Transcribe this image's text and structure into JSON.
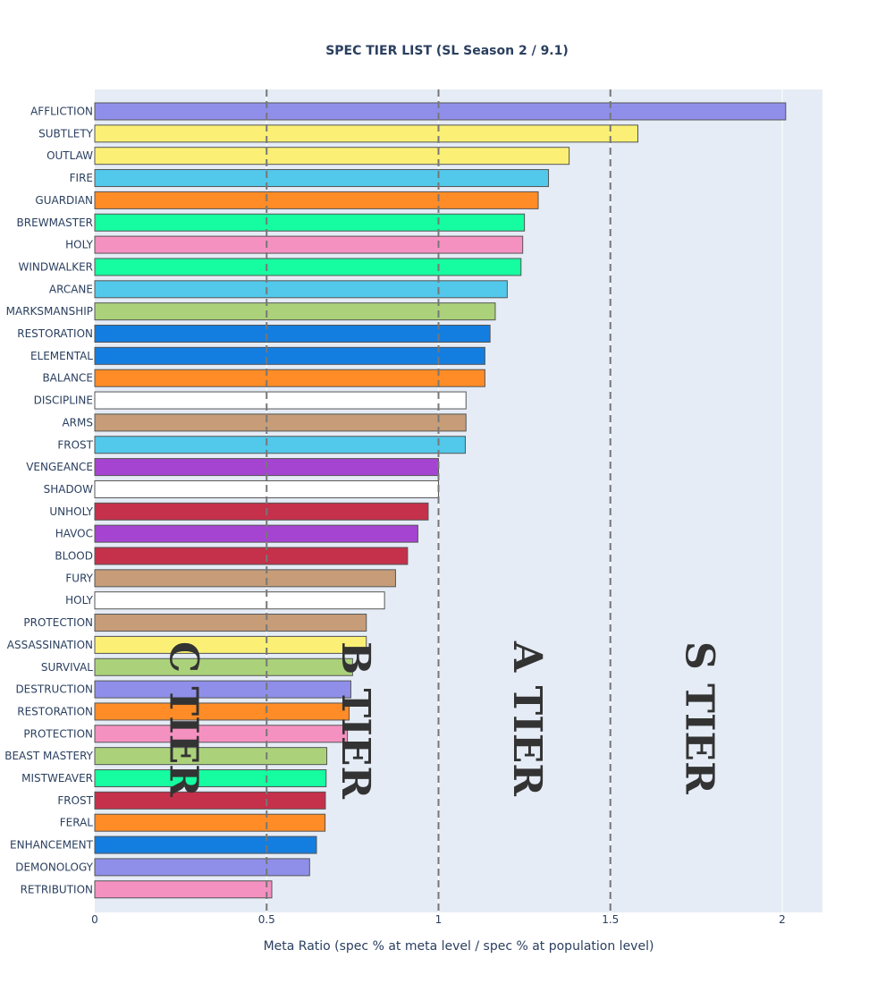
{
  "chart_data": {
    "type": "bar",
    "orientation": "horizontal",
    "title": "SPEC TIER LIST (SL Season 2 / 9.1)",
    "xlabel": "Meta Ratio (spec % at meta level / spec % at population level)",
    "ylabel": "",
    "xlim": [
      0,
      2.12
    ],
    "xticks": [
      {
        "value": 0,
        "label": "0"
      },
      {
        "value": 0.5,
        "label": "0.5"
      },
      {
        "value": 1,
        "label": "1"
      },
      {
        "value": 1.5,
        "label": "1.5"
      },
      {
        "value": 2,
        "label": "2"
      }
    ],
    "grid": true,
    "plot_background": "#e5ecf6",
    "bar_outline": "#555555",
    "reference_lines": [
      0.5,
      1.0,
      1.5
    ],
    "tier_labels": [
      {
        "text": "C TIER",
        "x": 0.22
      },
      {
        "text": "B TIER",
        "x": 0.72
      },
      {
        "text": "A TIER",
        "x": 1.22
      },
      {
        "text": "S TIER",
        "x": 1.72
      }
    ],
    "bars": [
      {
        "label": "AFFLICTION",
        "value": 2.01,
        "color": "#8f8fea"
      },
      {
        "label": "SUBTLETY",
        "value": 1.58,
        "color": "#fbf075"
      },
      {
        "label": "OUTLAW",
        "value": 1.38,
        "color": "#fbf075"
      },
      {
        "label": "FIRE",
        "value": 1.32,
        "color": "#52c8ea"
      },
      {
        "label": "GUARDIAN",
        "value": 1.29,
        "color": "#ff8c26"
      },
      {
        "label": "BREWMASTER",
        "value": 1.25,
        "color": "#16fca0"
      },
      {
        "label": "HOLY",
        "value": 1.245,
        "color": "#f591c1"
      },
      {
        "label": "WINDWALKER",
        "value": 1.24,
        "color": "#16fca0"
      },
      {
        "label": "ARCANE",
        "value": 1.2,
        "color": "#52c8ea"
      },
      {
        "label": "MARKSMANSHIP",
        "value": 1.165,
        "color": "#abd27a"
      },
      {
        "label": "RESTORATION",
        "value": 1.15,
        "color": "#147ee0"
      },
      {
        "label": "ELEMENTAL",
        "value": 1.135,
        "color": "#147ee0"
      },
      {
        "label": "BALANCE",
        "value": 1.135,
        "color": "#ff8c26"
      },
      {
        "label": "DISCIPLINE",
        "value": 1.08,
        "color": "#ffffff"
      },
      {
        "label": "ARMS",
        "value": 1.08,
        "color": "#c69d78"
      },
      {
        "label": "FROST",
        "value": 1.078,
        "color": "#52c8ea"
      },
      {
        "label": "VENGEANCE",
        "value": 1.0,
        "color": "#a644d2"
      },
      {
        "label": "SHADOW",
        "value": 1.0,
        "color": "#ffffff"
      },
      {
        "label": "UNHOLY",
        "value": 0.97,
        "color": "#c5304a"
      },
      {
        "label": "HAVOC",
        "value": 0.94,
        "color": "#a644d2"
      },
      {
        "label": "BLOOD",
        "value": 0.91,
        "color": "#c5304a"
      },
      {
        "label": "FURY",
        "value": 0.875,
        "color": "#c69d78"
      },
      {
        "label": "HOLY",
        "value": 0.843,
        "color": "#ffffff"
      },
      {
        "label": "PROTECTION",
        "value": 0.79,
        "color": "#c69d78"
      },
      {
        "label": "ASSASSINATION",
        "value": 0.79,
        "color": "#fbf075"
      },
      {
        "label": "SURVIVAL",
        "value": 0.75,
        "color": "#abd27a"
      },
      {
        "label": "DESTRUCTION",
        "value": 0.745,
        "color": "#8f8fea"
      },
      {
        "label": "RESTORATION",
        "value": 0.74,
        "color": "#ff8c26"
      },
      {
        "label": "PROTECTION",
        "value": 0.735,
        "color": "#f591c1"
      },
      {
        "label": "BEAST MASTERY",
        "value": 0.675,
        "color": "#abd27a"
      },
      {
        "label": "MISTWEAVER",
        "value": 0.673,
        "color": "#16fca0"
      },
      {
        "label": "FROST",
        "value": 0.671,
        "color": "#c5304a"
      },
      {
        "label": "FERAL",
        "value": 0.67,
        "color": "#ff8c26"
      },
      {
        "label": "ENHANCEMENT",
        "value": 0.645,
        "color": "#147ee0"
      },
      {
        "label": "DEMONOLOGY",
        "value": 0.625,
        "color": "#8f8fea"
      },
      {
        "label": "RETRIBUTION",
        "value": 0.515,
        "color": "#f591c1"
      }
    ]
  }
}
